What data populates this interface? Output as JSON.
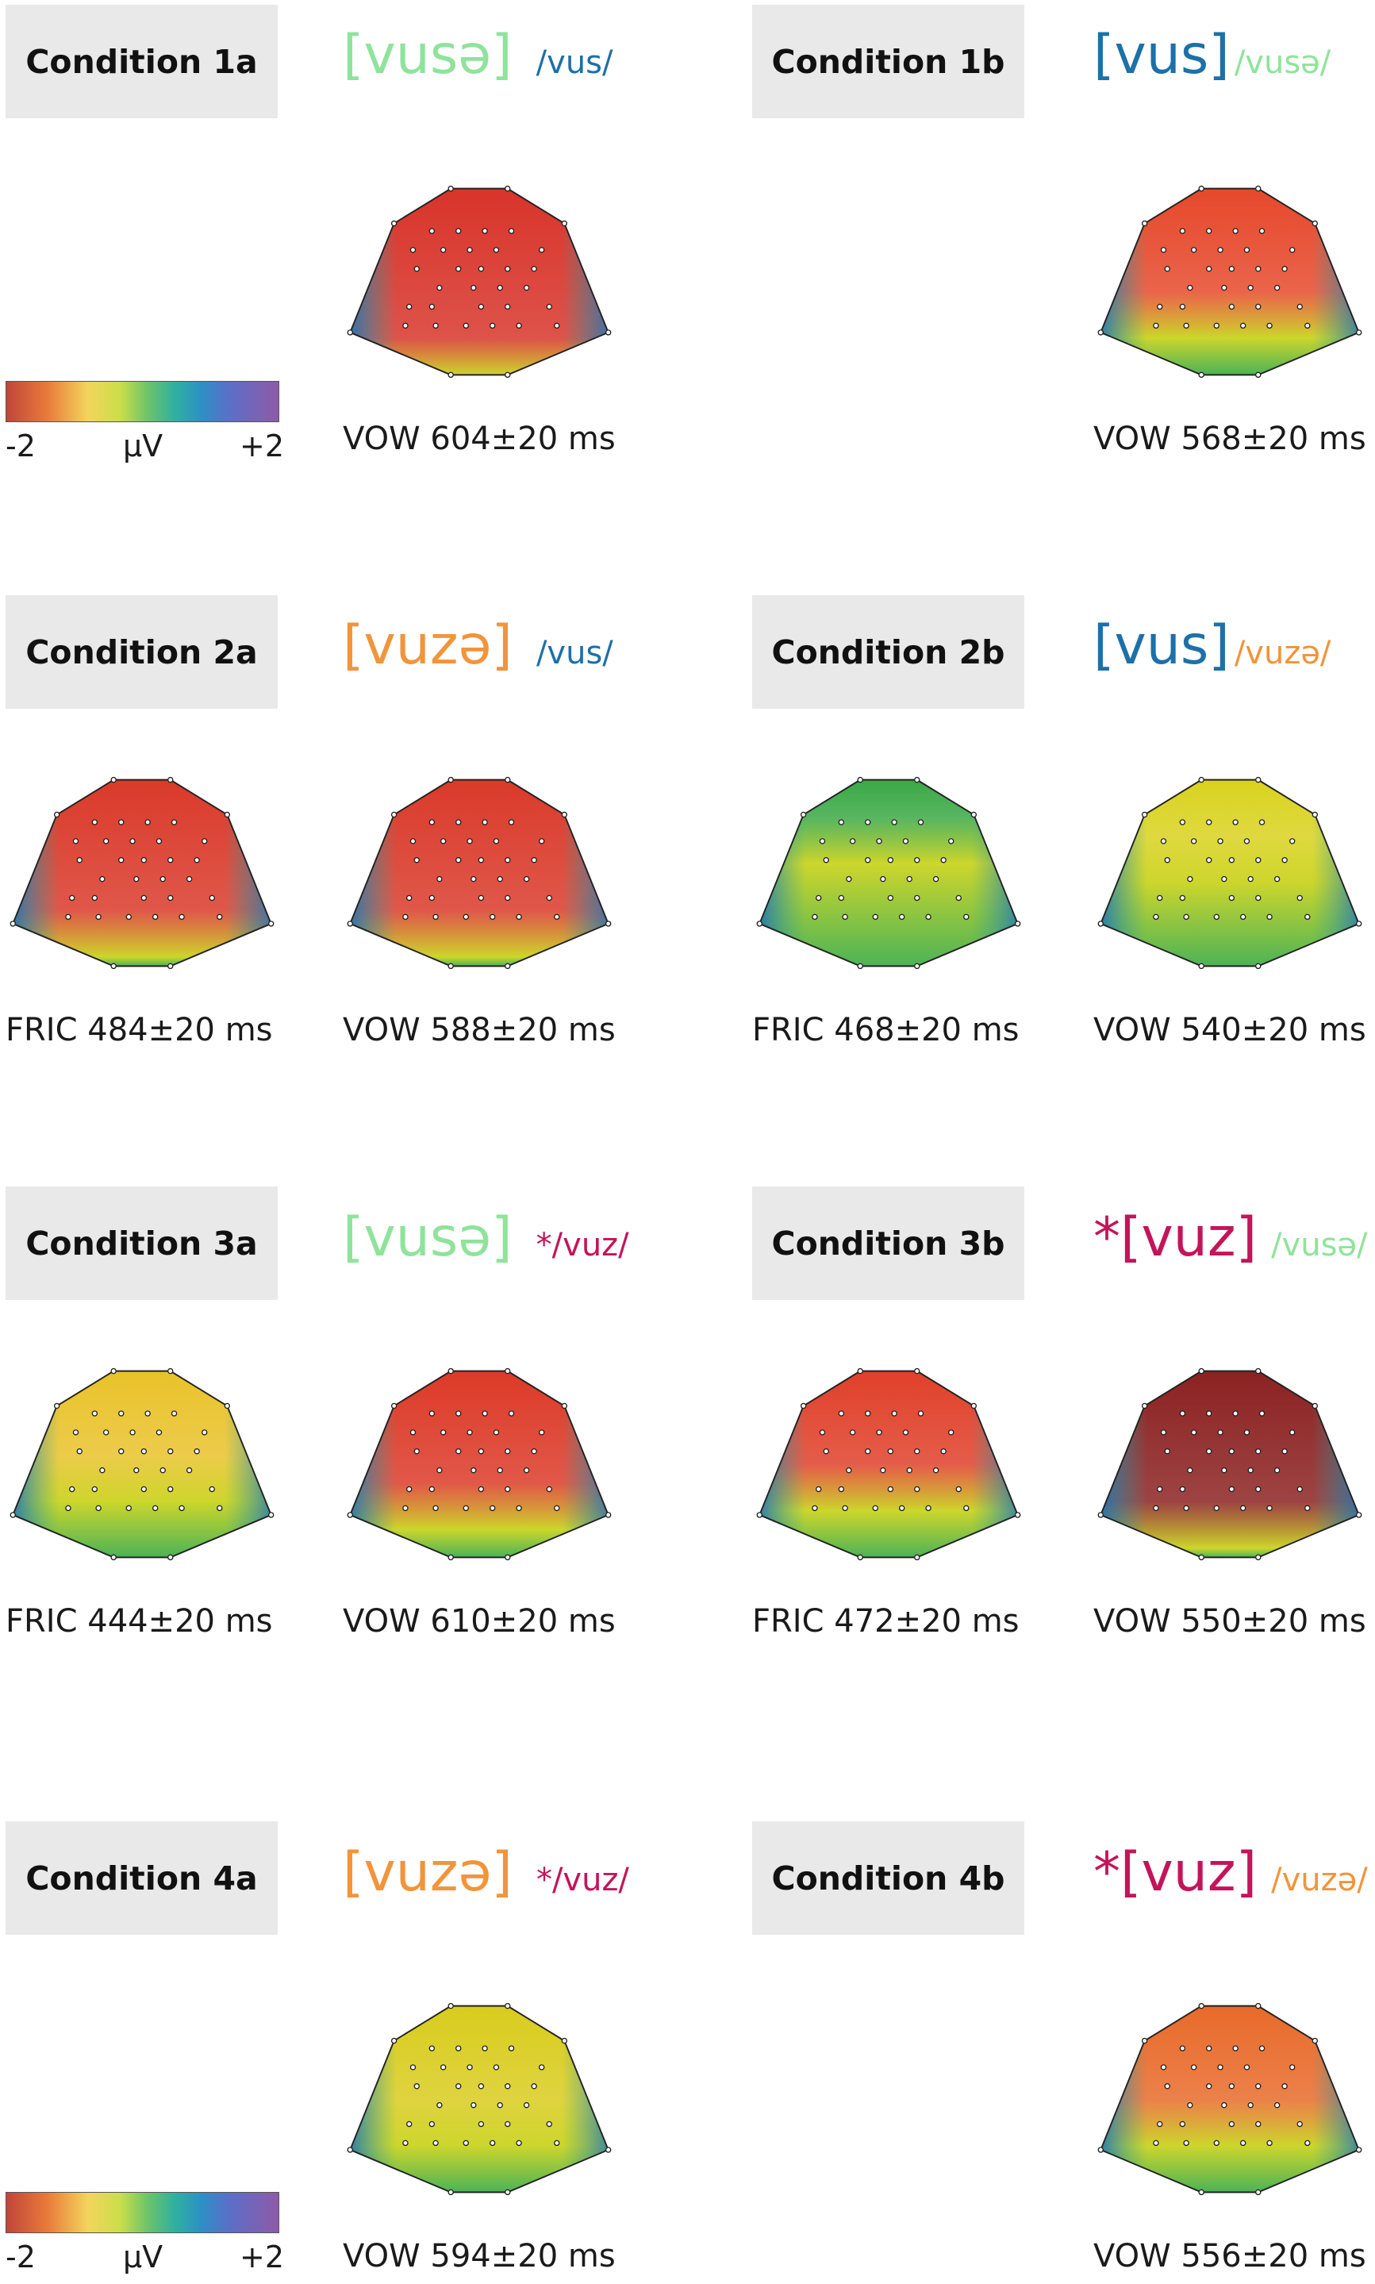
{
  "conditions": [
    {
      "id": "1a",
      "label": "Condition 1a",
      "bracket": "[vusə]",
      "slash": "/vus/",
      "bracket_color": "#8fe39b",
      "slash_color": "#1d70a8",
      "captions": [
        "VOW 604±20 ms"
      ],
      "maps": [
        {
          "hot": "#d8342a",
          "level": 0.8
        }
      ]
    },
    {
      "id": "1b",
      "label": "Condition 1b",
      "bracket": "[vus]",
      "slash": "/vusə/",
      "bracket_color": "#1d70a8",
      "slash_color": "#8fe39b",
      "captions": [
        "VOW 568±20 ms"
      ],
      "maps": [
        {
          "hot": "#e6482b",
          "level": 0.55
        }
      ]
    },
    {
      "id": "2a",
      "label": "Condition 2a",
      "bracket": "[vuzə]",
      "slash": "/vus/",
      "bracket_color": "#f2943a",
      "slash_color": "#1d70a8",
      "captions": [
        "FRIC 484±20 ms",
        "VOW 588±20 ms"
      ],
      "maps": [
        {
          "hot": "#da3a2a",
          "level": 0.7
        },
        {
          "hot": "#da3a2a",
          "level": 0.7
        }
      ]
    },
    {
      "id": "2b",
      "label": "Condition 2b",
      "bracket": "[vus]",
      "slash": "/vuzə/",
      "bracket_color": "#1d70a8",
      "slash_color": "#f2943a",
      "captions": [
        "FRIC 468±20 ms",
        "VOW 540±20 ms"
      ],
      "maps": [
        {
          "hot": "#3aa845",
          "level": 0.2
        },
        {
          "hot": "#d9d21e",
          "level": 0.3
        }
      ]
    },
    {
      "id": "3a",
      "label": "Condition 3a",
      "bracket": "[vusə]",
      "slash": "*/vuz/",
      "bracket_color": "#8fe39b",
      "slash_color": "#c4145a",
      "captions": [
        "FRIC 444±20 ms",
        "VOW 610±20 ms"
      ],
      "maps": [
        {
          "hot": "#e9c22a",
          "level": 0.45
        },
        {
          "hot": "#dc3a28",
          "level": 0.6
        }
      ]
    },
    {
      "id": "3b",
      "label": "Condition 3b",
      "bracket": "*[vuz]",
      "slash": "/vusə/",
      "bracket_color": "#c4145a",
      "slash_color": "#8fe39b",
      "captions": [
        "FRIC 472±20 ms",
        "VOW 550±20 ms"
      ],
      "maps": [
        {
          "hot": "#e0402a",
          "level": 0.5
        },
        {
          "hot": "#8c2222",
          "level": 0.7
        }
      ]
    },
    {
      "id": "4a",
      "label": "Condition 4a",
      "bracket": "[vuzə]",
      "slash": "*/vuz/",
      "bracket_color": "#f2943a",
      "slash_color": "#c4145a",
      "captions": [
        "VOW 594±20 ms"
      ],
      "maps": [
        {
          "hot": "#d9cc1d",
          "level": 0.5
        }
      ]
    },
    {
      "id": "4b",
      "label": "Condition 4b",
      "bracket": "*[vuz]",
      "slash": "/vuzə/",
      "bracket_color": "#c4145a",
      "slash_color": "#f2943a",
      "captions": [
        "VOW 556±20 ms"
      ],
      "maps": [
        {
          "hot": "#e86a2a",
          "level": 0.5
        }
      ]
    }
  ],
  "color_scale": {
    "min_label": "-2",
    "unit_label": "μV",
    "max_label": "+2"
  }
}
